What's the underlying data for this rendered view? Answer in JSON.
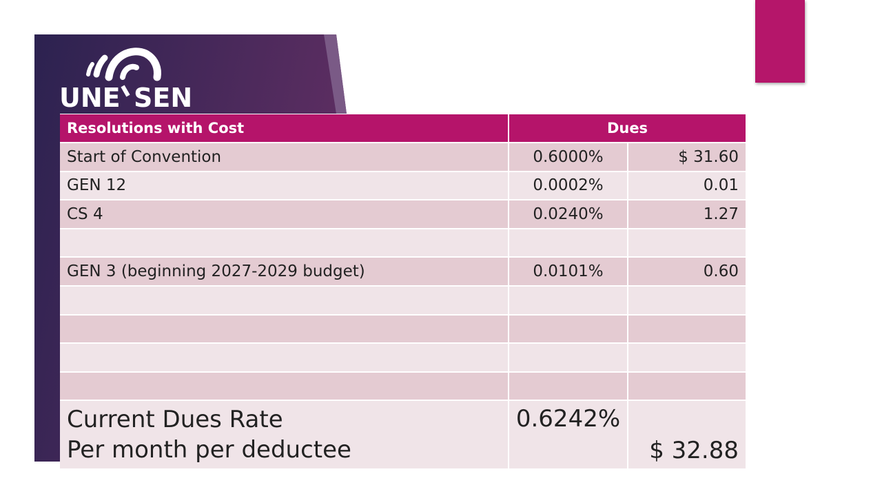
{
  "logo": {
    "left": "UNE",
    "right": "SEN"
  },
  "table": {
    "header": [
      "Resolutions with Cost",
      "Dues"
    ],
    "rows": [
      [
        "Start of Convention",
        "0.6000%",
        "$ 31.60"
      ],
      [
        "GEN 12",
        "0.0002%",
        "0.01"
      ],
      [
        "CS 4",
        "0.0240%",
        "1.27"
      ],
      null,
      [
        "GEN 3 (beginning 2027-2029 budget)",
        "0.0101%",
        "0.60"
      ],
      null,
      null,
      null,
      null
    ],
    "total": {
      "labels": [
        "Current Dues Rate",
        "Per month per deductee"
      ],
      "rate": "0.6242%",
      "amount": "$ 32.88"
    }
  }
}
